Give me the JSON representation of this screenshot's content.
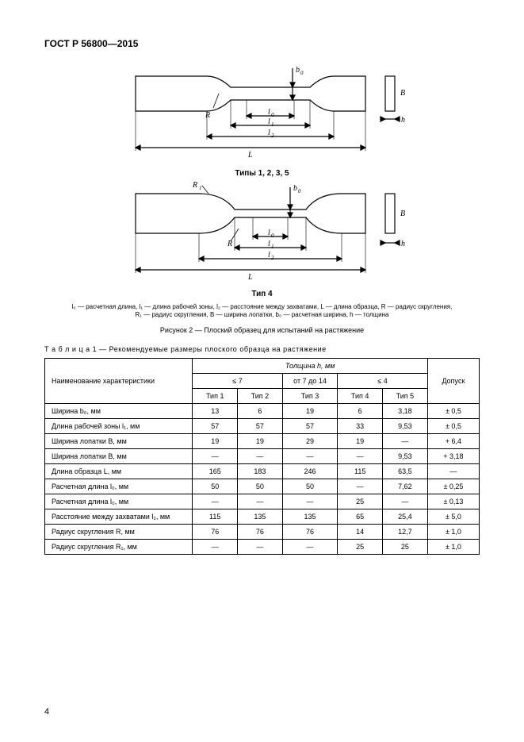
{
  "header": "ГОСТ Р 56800—2015",
  "figure_top_label": "Типы 1, 2, 3, 5",
  "figure_bottom_label": "Тип 4",
  "legend_line1": "l₀ — расчетная длина, l₁ — длина рабочей зоны, l₂ — расстояние между захватами, L — длина образца, R — радиус скругления,",
  "legend_line2": "R₁ — радиус скругления, B — ширина лопатки, b₀ — расчетная ширина, h — толщина",
  "figure_caption": "Рисунок 2 — Плоский образец для испытаний на растяжение",
  "table_caption_prefix": "Т а б л и ц а  1",
  "table_caption_rest": " — Рекомендуемые размеры плоского образца на растяжение",
  "table": {
    "col_param": "Наименование характеристики",
    "col_thickness": "Толщина h, мм",
    "col_tol": "Допуск",
    "groups": [
      "≤ 7",
      "от 7 до 14",
      "≤ 4"
    ],
    "types": [
      "Тип 1",
      "Тип 2",
      "Тип 3",
      "Тип 4",
      "Тип 5"
    ],
    "rows": [
      {
        "label": "Ширина b₀, мм",
        "c": [
          "13",
          "6",
          "19",
          "6",
          "3,18",
          "± 0,5"
        ]
      },
      {
        "label": "Длина рабочей зоны l₁, мм",
        "c": [
          "57",
          "57",
          "57",
          "33",
          "9,53",
          "± 0,5"
        ]
      },
      {
        "label": "Ширина лопатки B, мм",
        "c": [
          "19",
          "19",
          "29",
          "19",
          "—",
          "+ 6,4"
        ]
      },
      {
        "label": "Ширина лопатки B, мм",
        "c": [
          "—",
          "—",
          "—",
          "—",
          "9,53",
          "+ 3,18"
        ]
      },
      {
        "label": "Длина образца L, мм",
        "c": [
          "165",
          "183",
          "246",
          "115",
          "63,5",
          "—"
        ]
      },
      {
        "label": "Расчетная длина l₀, мм",
        "c": [
          "50",
          "50",
          "50",
          "—",
          "7,62",
          "± 0,25"
        ]
      },
      {
        "label": "Расчетная длина l₀, мм",
        "c": [
          "—",
          "—",
          "—",
          "25",
          "—",
          "± 0,13"
        ]
      },
      {
        "label": "Расстояние между захватами l₂, мм",
        "c": [
          "115",
          "135",
          "135",
          "65",
          "25,4",
          "± 5,0"
        ]
      },
      {
        "label": "Радиус скругления R, мм",
        "c": [
          "76",
          "76",
          "76",
          "14",
          "12,7",
          "± 1,0"
        ]
      },
      {
        "label": "Радиус скругления R₁, мм",
        "c": [
          "—",
          "—",
          "—",
          "25",
          "25",
          "± 1,0"
        ]
      }
    ]
  },
  "page_number": "4",
  "fig": {
    "stroke": "#000000",
    "stroke_width": 1.2,
    "arrow_width": 1.0
  }
}
